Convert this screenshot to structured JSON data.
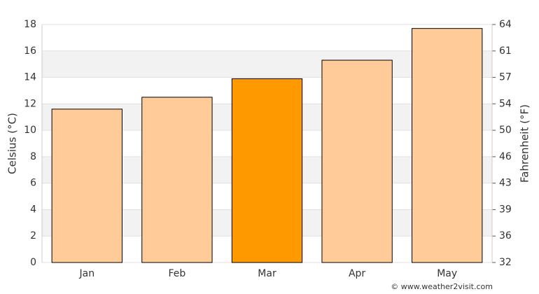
{
  "chart_data": {
    "type": "bar",
    "categories": [
      "Jan",
      "Feb",
      "Mar",
      "Apr",
      "May"
    ],
    "values": [
      11.6,
      12.5,
      13.9,
      15.3,
      17.7
    ],
    "colors": [
      "#ffcc99",
      "#ffcc99",
      "#ff9900",
      "#ffcc99",
      "#ffcc99"
    ],
    "ylabel": "Celsius (°C)",
    "y2label": "Fahrenheit (°F)",
    "ylim": [
      0,
      18
    ],
    "yticks": [
      0,
      2,
      4,
      6,
      8,
      10,
      12,
      14,
      16,
      18
    ],
    "y2lim": [
      32,
      64.4
    ],
    "y2ticks": [
      32,
      {
        "value": 35.6,
        "label": "36"
      },
      {
        "value": 39.2,
        "label": "39"
      },
      {
        "value": 42.8,
        "label": "43"
      },
      {
        "value": 46.4,
        "label": "46"
      },
      50,
      {
        "value": 53.6,
        "label": "54"
      },
      {
        "value": 57.2,
        "label": "57"
      },
      {
        "value": 60.8,
        "label": "61"
      },
      {
        "value": 64.4,
        "label": "64"
      }
    ],
    "grid": true,
    "source": "© www.weather2visit.com"
  }
}
